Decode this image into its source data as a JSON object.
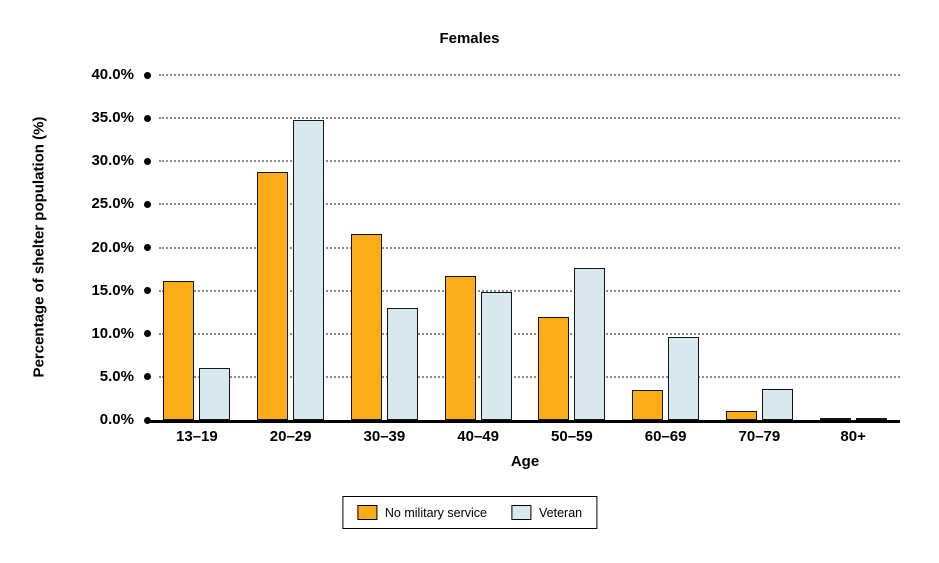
{
  "chart_data": {
    "type": "bar",
    "title": "Females",
    "xlabel": "Age",
    "ylabel": "Percentage of shelter population (%)",
    "categories": [
      "13–19",
      "20–29",
      "30–39",
      "40–49",
      "50–59",
      "60–69",
      "70–79",
      "80+"
    ],
    "series": [
      {
        "name": "No military service",
        "color": "#FBAD18",
        "values": [
          16.1,
          28.7,
          21.6,
          16.7,
          11.9,
          3.5,
          1.1,
          0.2
        ]
      },
      {
        "name": "Veteran",
        "color": "#D7E8EF",
        "values": [
          6.0,
          34.8,
          13.0,
          14.9,
          17.6,
          9.6,
          3.6,
          0.1
        ]
      }
    ],
    "ylim": [
      0,
      40
    ],
    "ytick_step": 5,
    "ytick_suffix": "%",
    "grid": "dotted horizontal gridlines with bullet at axis",
    "legend_position": "bottom-center",
    "bar_outline_color": "#141414",
    "axis_color": "#000000",
    "gridline_color": "#8c8c8c"
  }
}
